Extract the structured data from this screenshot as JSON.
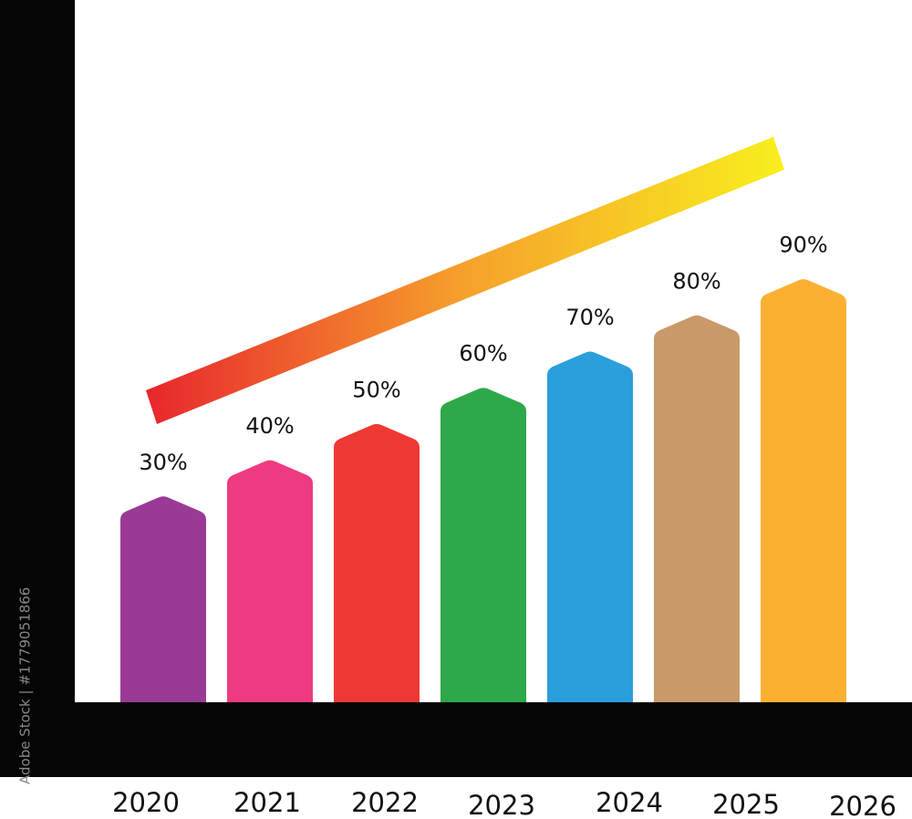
{
  "chart_data": {
    "type": "bar",
    "categories": [
      "2020",
      "2021",
      "2022",
      "2023",
      "2024",
      "2025",
      "2026"
    ],
    "values": [
      30,
      40,
      50,
      60,
      70,
      80,
      90
    ],
    "value_labels": [
      "30%",
      "40%",
      "50%",
      "60%",
      "70%",
      "80%",
      "90%"
    ],
    "colors": [
      "#9b3a96",
      "#ee3a80",
      "#ee3833",
      "#2ea84a",
      "#2b9fdc",
      "#c9996a",
      "#fbb034"
    ],
    "ylim": [
      -27,
      167
    ],
    "annotations": [
      "Adobe Stock | #1779051866"
    ]
  }
}
